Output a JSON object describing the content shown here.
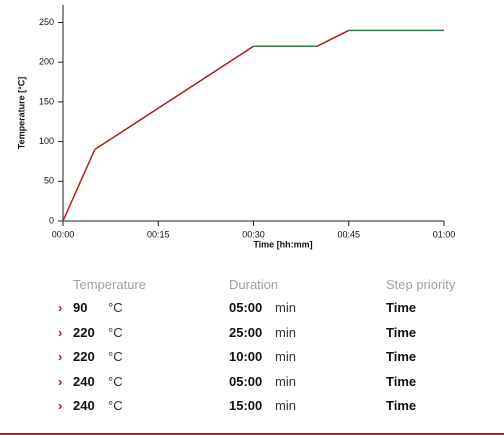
{
  "chart_data": {
    "type": "line",
    "xlabel": "Time [hh:mm]",
    "ylabel": "Temperature [°C]",
    "x": [
      0,
      5,
      30,
      40,
      45,
      60
    ],
    "values": [
      0,
      90,
      220,
      220,
      240,
      240
    ],
    "segment_colors": [
      "#b01c1c",
      "#b01c1c",
      "#2e7d4f",
      "#b01c1c",
      "#2e7d4f"
    ],
    "xlim": [
      0,
      60
    ],
    "ylim": [
      0,
      272
    ],
    "xticks": [
      {
        "value": 0,
        "label": "00:00"
      },
      {
        "value": 15,
        "label": "00:15"
      },
      {
        "value": 30,
        "label": "00:30"
      },
      {
        "value": 45,
        "label": "00:45"
      },
      {
        "value": 60,
        "label": "01:00"
      }
    ],
    "yticks": [
      0,
      50,
      100,
      150,
      200,
      250
    ]
  },
  "table": {
    "header": [
      "Temperature",
      "Duration",
      "Step priority"
    ],
    "rows": [
      [
        "90",
        "°C",
        "05:00",
        "min",
        "Time"
      ],
      [
        "220",
        "°C",
        "25:00",
        "min",
        "Time"
      ],
      [
        "220",
        "°C",
        "10:00",
        "min",
        "Time"
      ],
      [
        "240",
        "°C",
        "05:00",
        "min",
        "Time"
      ],
      [
        "240",
        "°C",
        "15:00",
        "min",
        "Time"
      ]
    ]
  }
}
